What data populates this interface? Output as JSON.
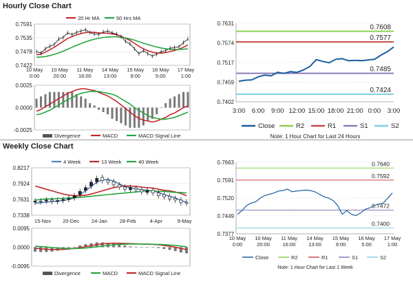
{
  "sections": {
    "hourly_title": "Hourly Close Chart",
    "weekly_title": "Weekly Close Chart"
  },
  "colors": {
    "close": "#1a5d9e",
    "r2": "#8ccf4e",
    "r1": "#c94a4a",
    "s1": "#8b7bb8",
    "s2": "#7fd0e0",
    "ma_short": "#c0282c",
    "ma_long": "#25a63e",
    "macd": "#c0282c",
    "signal": "#25a63e",
    "week4": "#4a7fc4",
    "week13": "#c0282c",
    "week40": "#25a63e",
    "candle": "#222222",
    "divergence": "#777777"
  },
  "chart_data": [
    {
      "id": "hourly_price",
      "type": "line",
      "legend": [
        "20 Hr MA",
        "50 Hrs MA"
      ],
      "yticks": [
        "0.7591",
        "0.7535",
        "0.7478",
        "0.7422"
      ],
      "ylim": [
        0.7422,
        0.7591
      ],
      "xticks": [
        [
          "10 May",
          "0:00"
        ],
        [
          "10 May",
          "20:00"
        ],
        [
          "11 May",
          "16:00"
        ],
        [
          "14 May",
          "13:00"
        ],
        [
          "15 May",
          "9:00"
        ],
        [
          "16 May",
          "5:00"
        ],
        [
          "17 May",
          "1:00"
        ]
      ],
      "series": [
        {
          "name": "Close",
          "values": [
            0.7478,
            0.7472,
            0.749,
            0.75,
            0.7508,
            0.753,
            0.7536,
            0.7555,
            0.7548,
            0.7557,
            0.7562,
            0.7568,
            0.7556,
            0.755,
            0.7549,
            0.7559,
            0.7562,
            0.7555,
            0.755,
            0.754,
            0.752,
            0.751,
            0.749,
            0.747,
            0.7482,
            0.747,
            0.746,
            0.7468,
            0.7478,
            0.7482,
            0.7492,
            0.7495,
            0.7498,
            0.7515,
            0.753
          ]
        },
        {
          "name": "20 Hr MA",
          "values": [
            0.7465,
            0.7468,
            0.7476,
            0.7486,
            0.7496,
            0.7508,
            0.752,
            0.7532,
            0.754,
            0.7547,
            0.7552,
            0.7556,
            0.7558,
            0.7557,
            0.7555,
            0.7554,
            0.7553,
            0.7551,
            0.7547,
            0.7541,
            0.7533,
            0.7524,
            0.7512,
            0.75,
            0.749,
            0.7482,
            0.7476,
            0.7472,
            0.7472,
            0.7474,
            0.7478,
            0.7483,
            0.7488,
            0.7496,
            0.7505
          ]
        },
        {
          "name": "50 Hrs MA",
          "values": [
            0.7455,
            0.7456,
            0.7458,
            0.7462,
            0.7467,
            0.7473,
            0.748,
            0.7488,
            0.7496,
            0.7504,
            0.7511,
            0.7518,
            0.7524,
            0.7529,
            0.7533,
            0.7536,
            0.7538,
            0.7539,
            0.7539,
            0.7537,
            0.7534,
            0.753,
            0.7525,
            0.7519,
            0.7513,
            0.7507,
            0.7502,
            0.7497,
            0.7493,
            0.749,
            0.7488,
            0.7487,
            0.7487,
            0.7488,
            0.749
          ]
        }
      ]
    },
    {
      "id": "hourly_macd",
      "type": "line",
      "yticks": [
        "0.0025",
        "0.0000",
        "-0.0025"
      ],
      "ylim": [
        -0.0025,
        0.0025
      ],
      "legend": [
        "Divergence",
        "MACD",
        "MACD Signal Line"
      ],
      "series": [
        {
          "name": "MACD",
          "values": [
            -0.0004,
            -0.0002,
            0.0001,
            0.0004,
            0.0007,
            0.001,
            0.0013,
            0.0016,
            0.0018,
            0.002,
            0.0021,
            0.0021,
            0.002,
            0.0019,
            0.0017,
            0.0015,
            0.0013,
            0.001,
            0.0007,
            0.0003,
            -0.0001,
            -0.0005,
            -0.0009,
            -0.0012,
            -0.0014,
            -0.0015,
            -0.0016,
            -0.0015,
            -0.0013,
            -0.0011,
            -0.0008,
            -0.0006,
            -0.0003,
            0.0,
            0.0002
          ]
        },
        {
          "name": "MACD Signal Line",
          "values": [
            -0.0008,
            -0.0007,
            -0.0005,
            -0.0003,
            0.0,
            0.0003,
            0.0006,
            0.0009,
            0.0011,
            0.0014,
            0.0016,
            0.0017,
            0.0018,
            0.0018,
            0.0018,
            0.0017,
            0.0016,
            0.0015,
            0.0013,
            0.001,
            0.0007,
            0.0004,
            0.0,
            -0.0003,
            -0.0006,
            -0.0009,
            -0.0011,
            -0.0012,
            -0.0013,
            -0.0013,
            -0.0012,
            -0.0011,
            -0.0009,
            -0.0007,
            -0.0005
          ]
        }
      ]
    },
    {
      "id": "hourly_levels",
      "type": "line",
      "yticks": [
        "0.7631",
        "0.7574",
        "0.7517",
        "0.7459",
        "0.7402"
      ],
      "ylim": [
        0.7402,
        0.7631
      ],
      "xticks": [
        "3:00",
        "6:00",
        "9:00",
        "12:00",
        "15:00",
        "18:00",
        "21:00",
        "0:00",
        "3:00"
      ],
      "levels": [
        {
          "name": "R2",
          "value": 0.7608,
          "label": "0.7608"
        },
        {
          "name": "R1",
          "value": 0.7577,
          "label": "0.7577"
        },
        {
          "name": "S1",
          "value": 0.7485,
          "label": "0.7485"
        },
        {
          "name": "S2",
          "value": 0.7424,
          "label": "0.7424"
        }
      ],
      "series": [
        {
          "name": "Close",
          "values": [
            0.7462,
            0.7465,
            0.7466,
            0.7475,
            0.748,
            0.7478,
            0.7488,
            0.7485,
            0.749,
            0.7488,
            0.7495,
            0.7505,
            0.7525,
            0.752,
            0.7516,
            0.7526,
            0.7528,
            0.7522,
            0.7523,
            0.7522,
            0.7524,
            0.7526,
            0.7538,
            0.7548,
            0.7562
          ]
        }
      ],
      "legend": [
        "Close",
        "R2",
        "R1",
        "S1",
        "S2"
      ],
      "note": "Note: 1 Hour Chart for Last 24 Hours"
    },
    {
      "id": "weekly_price",
      "type": "line",
      "legend": [
        "4 Week",
        "13 Week",
        "40 Week"
      ],
      "yticks": [
        "0.8217",
        "0.7924",
        "0.7631",
        "0.7338"
      ],
      "ylim": [
        0.7338,
        0.8217
      ],
      "xticks": [
        "15-Nov",
        "20-Dec",
        "24-Jan",
        "28-Feb",
        "4-Apr",
        "9-May"
      ],
      "candles": [
        [
          0.76,
          0.758
        ],
        [
          0.759,
          0.76
        ],
        [
          0.762,
          0.76
        ],
        [
          0.7595,
          0.762
        ],
        [
          0.761,
          0.759
        ],
        [
          0.763,
          0.761
        ],
        [
          0.765,
          0.763
        ],
        [
          0.77,
          0.766
        ],
        [
          0.778,
          0.772
        ],
        [
          0.785,
          0.78
        ],
        [
          0.795,
          0.788
        ],
        [
          0.802,
          0.796
        ],
        [
          0.798,
          0.804
        ],
        [
          0.795,
          0.799
        ],
        [
          0.79,
          0.796
        ],
        [
          0.786,
          0.79
        ],
        [
          0.782,
          0.786
        ],
        [
          0.785,
          0.781
        ],
        [
          0.781,
          0.784
        ],
        [
          0.777,
          0.781
        ],
        [
          0.78,
          0.776
        ],
        [
          0.775,
          0.78
        ],
        [
          0.77,
          0.775
        ],
        [
          0.768,
          0.772
        ],
        [
          0.764,
          0.769
        ],
        [
          0.762,
          0.765
        ],
        [
          0.757,
          0.762
        ],
        [
          0.756,
          0.758
        ]
      ],
      "series": [
        {
          "name": "4 Week",
          "values": [
            0.756,
            0.757,
            0.758,
            0.759,
            0.76,
            0.761,
            0.763,
            0.766,
            0.772,
            0.779,
            0.787,
            0.795,
            0.799,
            0.8,
            0.797,
            0.792,
            0.787,
            0.785,
            0.783,
            0.781,
            0.78,
            0.779,
            0.776,
            0.772,
            0.769,
            0.766,
            0.761,
            0.758
          ]
        },
        {
          "name": "13 Week",
          "values": [
            0.788,
            0.785,
            0.782,
            0.779,
            0.776,
            0.773,
            0.771,
            0.77,
            0.77,
            0.771,
            0.773,
            0.776,
            0.779,
            0.782,
            0.785,
            0.787,
            0.788,
            0.788,
            0.787,
            0.786,
            0.785,
            0.784,
            0.782,
            0.78,
            0.779,
            0.777,
            0.774,
            0.77
          ]
        },
        {
          "name": "40 Week",
          "values": [
            0.762,
            0.763,
            0.764,
            0.764,
            0.765,
            0.765,
            0.766,
            0.766,
            0.767,
            0.768,
            0.769,
            0.77,
            0.771,
            0.772,
            0.773,
            0.774,
            0.775,
            0.776,
            0.777,
            0.778,
            0.779,
            0.779,
            0.778,
            0.778,
            0.777,
            0.776,
            0.776,
            0.775
          ]
        }
      ]
    },
    {
      "id": "weekly_macd",
      "type": "line",
      "yticks": [
        "0.0095",
        "0.0000",
        "-0.0095"
      ],
      "ylim": [
        -0.0095,
        0.0095
      ],
      "legend": [
        "Divergence",
        "MACD",
        "MACD Signal Line"
      ],
      "series": [
        {
          "name": "MACD",
          "values": [
            -0.0005,
            -0.0008,
            -0.001,
            -0.0012,
            -0.0012,
            -0.0011,
            -0.0009,
            -0.0006,
            -0.0002,
            0.0003,
            0.0008,
            0.0013,
            0.0017,
            0.0019,
            0.002,
            0.002,
            0.0019,
            0.0018,
            0.0017,
            0.0016,
            0.0015,
            0.0014,
            0.0012,
            0.0009,
            0.0005,
            0.0,
            -0.0006,
            -0.0012
          ]
        },
        {
          "name": "MACD Signal Line",
          "values": [
            0.0005,
            0.0003,
            0.0001,
            -0.0002,
            -0.0004,
            -0.0006,
            -0.0007,
            -0.0007,
            -0.0006,
            -0.0004,
            -0.0001,
            0.0002,
            0.0006,
            0.0009,
            0.0012,
            0.0014,
            0.0015,
            0.0016,
            0.0016,
            0.0016,
            0.0016,
            0.0015,
            0.0014,
            0.0013,
            0.0011,
            0.0009,
            0.0006,
            0.0002
          ]
        }
      ]
    },
    {
      "id": "weekly_levels",
      "type": "line",
      "yticks": [
        "0.7663",
        "0.7591",
        "0.7520",
        "0.7449",
        "0.7377"
      ],
      "ylim": [
        0.7377,
        0.7663
      ],
      "xticks": [
        [
          "10 May",
          "0:00"
        ],
        [
          "10 May",
          "20:00"
        ],
        [
          "11 May",
          "16:00"
        ],
        [
          "14 May",
          "13:00"
        ],
        [
          "15 May",
          "9:00"
        ],
        [
          "16 May",
          "5:00"
        ],
        [
          "17 May",
          "1:00"
        ]
      ],
      "levels": [
        {
          "name": "R2",
          "value": 0.764,
          "label": "0.7640"
        },
        {
          "name": "R1",
          "value": 0.7592,
          "label": "0.7592"
        },
        {
          "name": "S1",
          "value": 0.7472,
          "label": "0.7472"
        },
        {
          "name": "S2",
          "value": 0.74,
          "label": "0.7400"
        }
      ],
      "series": [
        {
          "name": "Close",
          "values": [
            0.7455,
            0.747,
            0.749,
            0.75,
            0.7505,
            0.752,
            0.753,
            0.7535,
            0.754,
            0.7548,
            0.755,
            0.7556,
            0.7545,
            0.7548,
            0.755,
            0.7552,
            0.755,
            0.7545,
            0.7535,
            0.7525,
            0.752,
            0.751,
            0.749,
            0.7455,
            0.747,
            0.7455,
            0.745,
            0.746,
            0.7475,
            0.748,
            0.749,
            0.7495,
            0.75,
            0.752,
            0.754
          ]
        }
      ],
      "legend": [
        "Close",
        "R2",
        "R1",
        "S1",
        "S2"
      ],
      "note": "Note: 1 Hour Chart for Last 1 Week"
    }
  ]
}
